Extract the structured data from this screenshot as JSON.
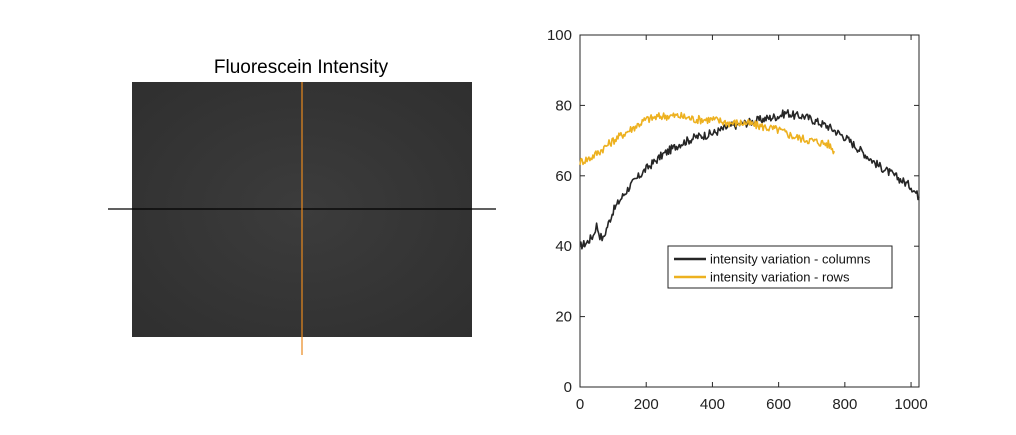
{
  "image_panel": {
    "title": "Fluorescein Intensity",
    "image_color": "#353535",
    "row_line_color": "#000000",
    "column_line_color": "#e8891e"
  },
  "chart_data": {
    "type": "line",
    "xlim": [
      0,
      1024
    ],
    "ylim": [
      0,
      100
    ],
    "xticks": [
      0,
      200,
      400,
      600,
      800,
      1000
    ],
    "yticks": [
      0,
      20,
      40,
      60,
      80,
      100
    ],
    "grid": false,
    "legend_position": "lower-right",
    "series": [
      {
        "name": "intensity variation - columns",
        "color": "#262626",
        "x": [
          0,
          20,
          40,
          50,
          60,
          70,
          80,
          100,
          120,
          150,
          200,
          250,
          300,
          350,
          400,
          450,
          500,
          550,
          600,
          625,
          650,
          675,
          700,
          750,
          800,
          850,
          900,
          950,
          1000,
          1024
        ],
        "y": [
          40,
          41,
          43,
          46,
          43,
          42,
          45,
          50,
          53,
          57,
          62,
          66,
          69,
          71,
          72,
          74,
          75,
          76,
          77,
          78,
          77,
          77,
          76,
          74,
          71,
          67,
          63,
          60,
          57,
          54
        ]
      },
      {
        "name": "intensity variation - rows",
        "color": "#edb120",
        "x": [
          0,
          30,
          60,
          100,
          150,
          200,
          250,
          300,
          350,
          400,
          450,
          500,
          550,
          600,
          650,
          700,
          750,
          768
        ],
        "y": [
          64,
          65,
          67,
          70,
          73,
          76,
          77,
          77,
          76,
          76,
          75,
          75,
          74,
          73,
          71,
          70,
          69,
          67
        ]
      }
    ]
  }
}
